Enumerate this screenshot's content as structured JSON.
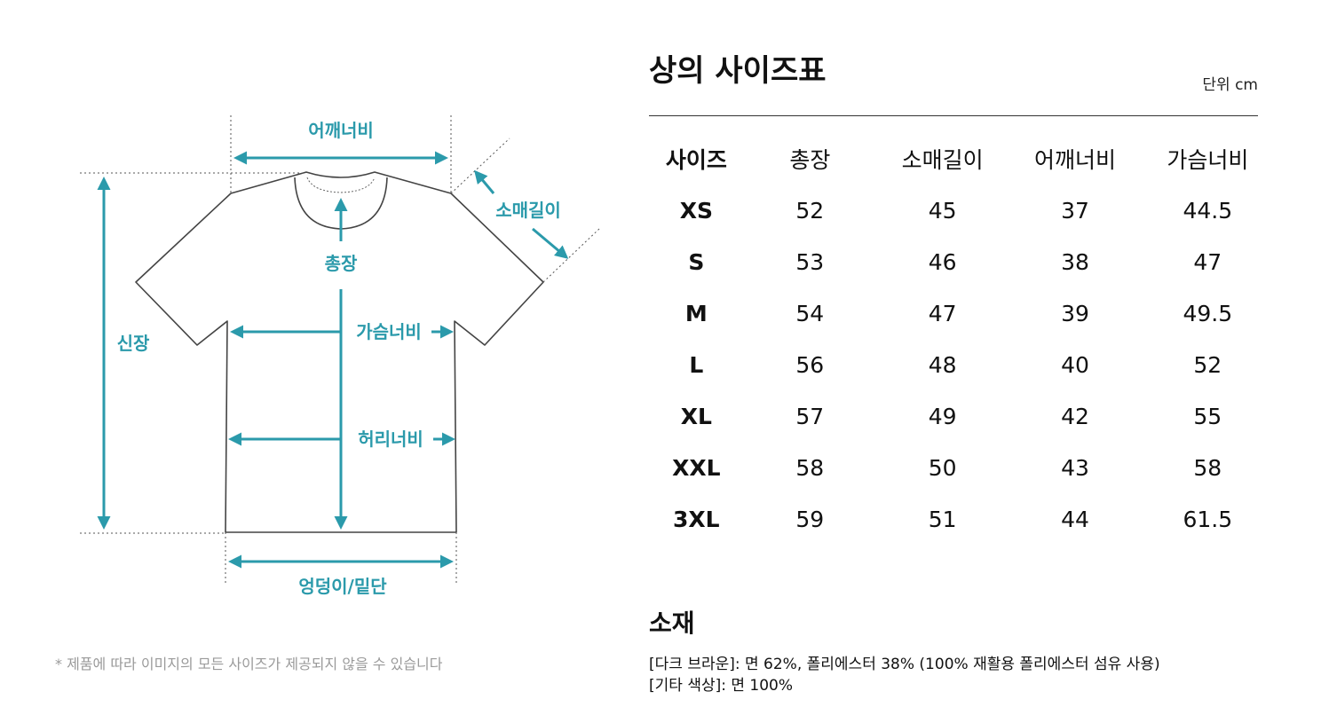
{
  "diagram": {
    "labels": {
      "shoulder": "어깨너비",
      "sleeve": "소매길이",
      "length": "총장",
      "height": "신장",
      "chest": "가슴너비",
      "waist": "허리너비",
      "hem": "엉덩이/밑단"
    },
    "accent_color": "#2b9aab",
    "footnote": "* 제품에 따라 이미지의 모든 사이즈가 제공되지 않을 수 있습니다"
  },
  "size_chart": {
    "title": "상의 사이즈표",
    "unit": "단위 cm",
    "headers": [
      "사이즈",
      "총장",
      "소매길이",
      "어깨너비",
      "가슴너비"
    ],
    "rows": [
      [
        "XS",
        "52",
        "45",
        "37",
        "44.5"
      ],
      [
        "S",
        "53",
        "46",
        "38",
        "47"
      ],
      [
        "M",
        "54",
        "47",
        "39",
        "49.5"
      ],
      [
        "L",
        "56",
        "48",
        "40",
        "52"
      ],
      [
        "XL",
        "57",
        "49",
        "42",
        "55"
      ],
      [
        "XXL",
        "58",
        "50",
        "43",
        "58"
      ],
      [
        "3XL",
        "59",
        "51",
        "44",
        "61.5"
      ]
    ]
  },
  "material": {
    "title": "소재",
    "lines": [
      "[다크 브라운]: 면 62%, 폴리에스터 38% (100% 재활용 폴리에스터 섬유 사용)",
      "[기타 색상]: 면 100%"
    ]
  }
}
